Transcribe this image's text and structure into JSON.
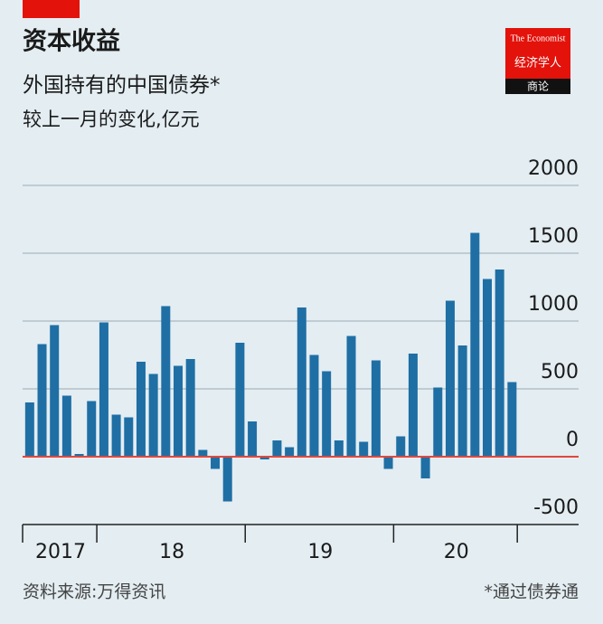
{
  "chart_data": {
    "type": "bar",
    "title": "资本收益",
    "subtitle": "外国持有的中国债券*",
    "unit_label": "较上一月的变化,亿元",
    "source": "资料来源:万得资讯",
    "note": "*通过债券通",
    "brand": {
      "name": "The Economist",
      "chinese": "经济学人",
      "section": "商论"
    },
    "categories": [
      null,
      null,
      "2017",
      null,
      null,
      null,
      null,
      null,
      null,
      null,
      null,
      "18",
      null,
      null,
      null,
      null,
      null,
      null,
      null,
      null,
      null,
      null,
      null,
      "19",
      null,
      null,
      null,
      null,
      null,
      null,
      null,
      null,
      null,
      null,
      "20",
      null,
      null,
      null,
      null,
      null
    ],
    "values": [
      400,
      830,
      970,
      450,
      20,
      410,
      990,
      310,
      290,
      700,
      610,
      1110,
      670,
      720,
      50,
      -90,
      -330,
      840,
      260,
      -20,
      120,
      70,
      1100,
      750,
      630,
      120,
      890,
      110,
      710,
      -90,
      150,
      760,
      -160,
      510,
      1150,
      820,
      1650,
      1310,
      1380,
      550
    ],
    "color": "#1f6fa5",
    "zero_color": "#e3473b",
    "ylim": [
      -500,
      2000
    ],
    "yticks": [
      -500,
      0,
      500,
      1000,
      1500,
      2000
    ],
    "grid": true
  }
}
